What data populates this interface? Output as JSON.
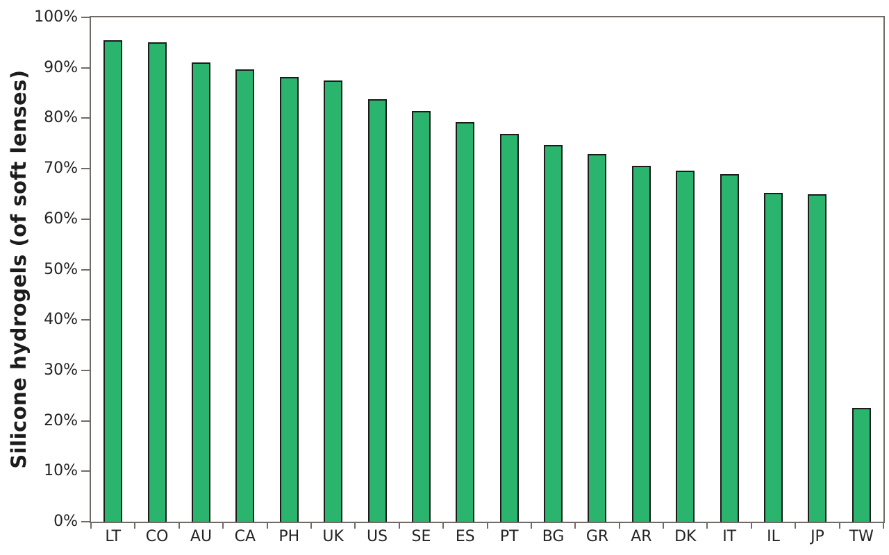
{
  "chart_data": {
    "type": "bar",
    "title": "",
    "ylabel": "Silicone hydrogels (of soft lenses)",
    "xlabel": "",
    "categories": [
      "LT",
      "CO",
      "AU",
      "CA",
      "PH",
      "UK",
      "US",
      "SE",
      "ES",
      "PT",
      "BG",
      "GR",
      "AR",
      "DK",
      "IT",
      "IL",
      "JP",
      "TW"
    ],
    "values": [
      95.5,
      95.0,
      91.1,
      89.7,
      88.2,
      87.5,
      83.8,
      81.4,
      79.2,
      76.9,
      74.7,
      72.9,
      70.6,
      69.6,
      68.9,
      65.2,
      64.9,
      22.6
    ],
    "ylim": [
      0,
      100
    ],
    "ytick_step": 10,
    "ytick_labels": [
      "0%",
      "10%",
      "20%",
      "30%",
      "40%",
      "50%",
      "60%",
      "70%",
      "80%",
      "90%",
      "100%"
    ],
    "grid": false,
    "legend_position": "none",
    "colors": {
      "bar_fill": "#2BB46D",
      "bar_border": "#1B1B1B",
      "axis": "#6F6A64",
      "text": "#232323",
      "background": "#FFFFFF"
    }
  }
}
